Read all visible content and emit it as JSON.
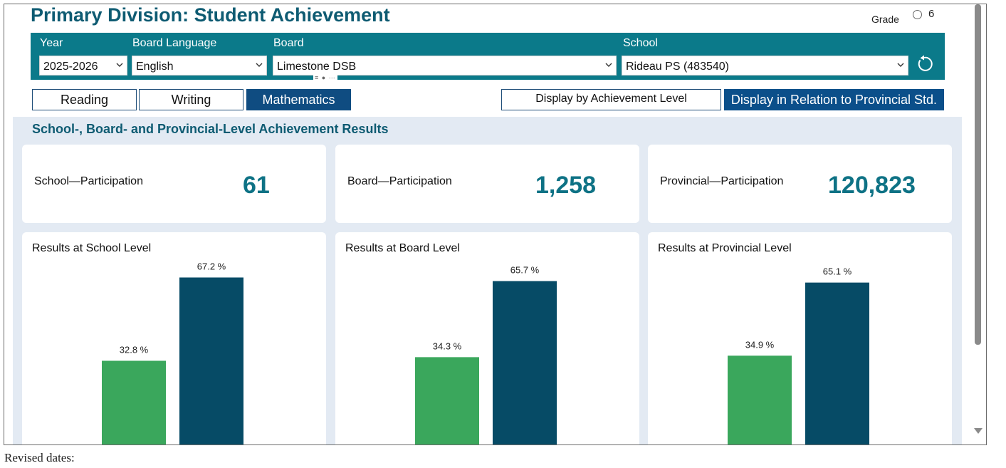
{
  "page": {
    "title": "Primary Division: Student Achievement",
    "grade_label": "Grade",
    "grade_value": "6"
  },
  "filters": {
    "year": {
      "label": "Year",
      "value": "2025-2026"
    },
    "language": {
      "label": "Board Language",
      "value": "English"
    },
    "board": {
      "label": "Board",
      "value": "Limestone DSB"
    },
    "school": {
      "label": "School",
      "value": "Rideau PS (483540)"
    },
    "reset_icon": "reset-icon"
  },
  "subject_tabs": [
    {
      "label": "Reading",
      "active": false
    },
    {
      "label": "Writing",
      "active": false
    },
    {
      "label": "Mathematics",
      "active": true
    }
  ],
  "display_options": [
    {
      "label": "Display by Achievement Level",
      "active": false
    },
    {
      "label": "Display in Relation to Provincial Std.",
      "active": true
    }
  ],
  "section": {
    "title": "School-, Board- and Provincial-Level Achievement Results"
  },
  "participation": [
    {
      "label": "School—Participation",
      "value": "61"
    },
    {
      "label": "Board—Participation",
      "value": "1,258"
    },
    {
      "label": "Provincial—Participation",
      "value": "120,823"
    }
  ],
  "colors": {
    "accent": "#0e7285",
    "filterbar": "#0b7a8a",
    "bar_below": "#3aa75c",
    "bar_meets": "#064b66"
  },
  "chart_data": [
    {
      "type": "bar",
      "title": "Results at School Level",
      "values": [
        32.8,
        67.2
      ],
      "labels": [
        "32.8 %",
        "67.2 %"
      ]
    },
    {
      "type": "bar",
      "title": "Results at Board Level",
      "values": [
        34.3,
        65.7
      ],
      "labels": [
        "34.3 %",
        "65.7 %"
      ]
    },
    {
      "type": "bar",
      "title": "Results at Provincial Level",
      "values": [
        34.9,
        65.1
      ],
      "labels": [
        "34.9 %",
        "65.1 %"
      ]
    }
  ],
  "footer": {
    "text": "Revised dates:"
  }
}
